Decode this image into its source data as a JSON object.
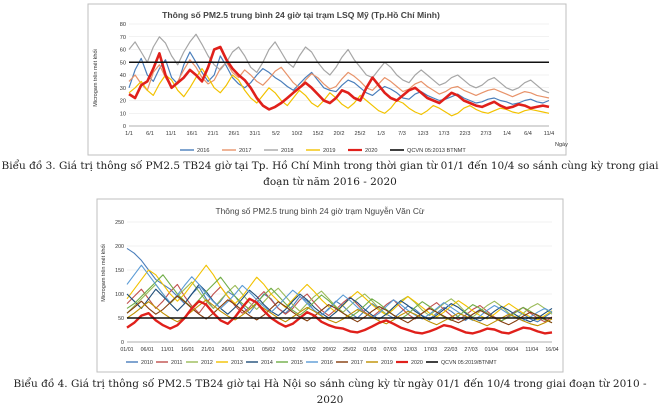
{
  "chart_data": [
    {
      "type": "line",
      "title": "Thông số PM2.5 trung bình 24 giờ tại trạm LSQ Mỹ (Tp.Hồ Chí Minh)",
      "ylabel": "Microgam trên mét khối",
      "xlabel": "Ngày",
      "ylim": [
        0,
        80
      ],
      "yticks": [
        0,
        10,
        20,
        30,
        40,
        50,
        60,
        70,
        80
      ],
      "xticks": [
        "1/1",
        "6/1",
        "11/1",
        "16/1",
        "21/1",
        "26/1",
        "31/1",
        "5/2",
        "10/2",
        "15/2",
        "20/2",
        "25/2",
        "1/3",
        "7/3",
        "12/3",
        "17/3",
        "22/3",
        "27/3",
        "1/4",
        "6/4",
        "11/4"
      ],
      "threshold": {
        "name": "QCVN 05:2013 BTNMT",
        "value": 50,
        "color": "#111111"
      },
      "caption": "Biểu đồ 3. Giá trị thông số PM2.5 TB24 giờ tại Tp. Hồ Chí Minh trong thời gian từ 01/1 đến 10/4 so sánh cùng kỳ trong giai đoạn từ năm 2016 - 2020",
      "series": [
        {
          "name": "2016",
          "color": "#4a7ebb",
          "width": 1.2,
          "values": [
            30,
            44,
            53,
            40,
            35,
            45,
            52,
            38,
            33,
            48,
            58,
            50,
            42,
            35,
            40,
            55,
            47,
            38,
            33,
            30,
            34,
            40,
            45,
            42,
            38,
            35,
            31,
            28,
            33,
            38,
            42,
            36,
            30,
            28,
            27,
            32,
            36,
            34,
            30,
            26,
            24,
            28,
            31,
            29,
            26,
            22,
            21,
            25,
            27,
            24,
            22,
            20,
            21,
            23,
            25,
            22,
            20,
            18,
            19,
            21,
            22,
            20,
            19,
            17,
            18,
            20,
            21,
            19,
            18,
            20
          ]
        },
        {
          "name": "2017",
          "color": "#e8936a",
          "width": 1.2,
          "values": [
            35,
            40,
            33,
            28,
            42,
            48,
            38,
            30,
            35,
            44,
            52,
            46,
            38,
            33,
            36,
            45,
            50,
            42,
            38,
            44,
            40,
            35,
            32,
            37,
            43,
            46,
            40,
            34,
            30,
            36,
            41,
            38,
            33,
            29,
            31,
            37,
            42,
            39,
            35,
            30,
            28,
            33,
            38,
            35,
            31,
            27,
            29,
            33,
            35,
            31,
            28,
            25,
            27,
            30,
            31,
            28,
            26,
            24,
            26,
            28,
            29,
            27,
            25,
            23,
            25,
            27,
            26,
            24,
            23,
            22
          ]
        },
        {
          "name": "2018",
          "color": "#a6a6a6",
          "width": 1.2,
          "values": [
            60,
            66,
            58,
            50,
            62,
            70,
            65,
            55,
            48,
            58,
            66,
            72,
            64,
            55,
            48,
            44,
            50,
            58,
            62,
            55,
            46,
            42,
            50,
            60,
            66,
            58,
            50,
            46,
            55,
            62,
            58,
            50,
            44,
            40,
            46,
            54,
            60,
            52,
            46,
            40,
            38,
            44,
            50,
            46,
            40,
            36,
            34,
            40,
            44,
            40,
            36,
            32,
            34,
            38,
            40,
            36,
            32,
            30,
            32,
            36,
            38,
            34,
            30,
            28,
            30,
            34,
            36,
            32,
            28,
            26
          ]
        },
        {
          "name": "2019",
          "color": "#f2c200",
          "width": 1.2,
          "values": [
            26,
            30,
            35,
            28,
            24,
            33,
            40,
            36,
            28,
            23,
            30,
            38,
            45,
            38,
            30,
            26,
            32,
            40,
            36,
            28,
            22,
            18,
            24,
            30,
            26,
            20,
            16,
            22,
            28,
            24,
            18,
            15,
            20,
            26,
            22,
            17,
            14,
            18,
            24,
            20,
            16,
            12,
            10,
            14,
            20,
            18,
            14,
            11,
            9,
            12,
            16,
            14,
            11,
            8,
            10,
            14,
            16,
            13,
            11,
            10,
            12,
            14,
            13,
            11,
            10,
            12,
            13,
            12,
            11,
            10
          ]
        },
        {
          "name": "2020",
          "color": "#e0201b",
          "width": 2.6,
          "values": [
            25,
            22,
            32,
            35,
            45,
            57,
            40,
            30,
            34,
            38,
            44,
            40,
            35,
            46,
            60,
            62,
            52,
            45,
            40,
            36,
            30,
            22,
            16,
            13,
            15,
            18,
            22,
            26,
            30,
            34,
            30,
            25,
            20,
            18,
            22,
            28,
            26,
            22,
            20,
            30,
            38,
            32,
            26,
            22,
            20,
            24,
            28,
            30,
            26,
            22,
            20,
            18,
            22,
            26,
            24,
            20,
            18,
            16,
            15,
            17,
            19,
            16,
            14,
            15,
            17,
            16,
            14,
            15,
            16,
            15
          ]
        }
      ]
    },
    {
      "type": "line",
      "title": "Thông số PM2.5 trung bình 24 giờ trạm Nguyễn Văn Cừ",
      "ylabel": "Microgam trên mét khối",
      "xlabel": "",
      "ylim": [
        0,
        250
      ],
      "yticks": [
        0,
        50,
        100,
        150,
        200,
        250
      ],
      "xticks": [
        "01/01",
        "06/01",
        "11/01",
        "16/01",
        "21/01",
        "26/01",
        "31/01",
        "05/02",
        "10/02",
        "15/02",
        "20/02",
        "25/02",
        "01/03",
        "07/03",
        "12/03",
        "17/03",
        "22/03",
        "27/03",
        "01/04",
        "06/04",
        "11/04",
        "16/04"
      ],
      "threshold": {
        "name": "QCVN 05:2019/BTNMT",
        "value": 50,
        "color": "#111111"
      },
      "caption": "Biểu đồ 4. Giá trị thông số PM2.5 TB24 giờ tại Hà Nội so sánh cùng kỳ từ ngày 01/1 đến 10/4 trong giai đoạn từ 2010 - 2020",
      "series": [
        {
          "name": "2010",
          "color": "#4a7ebb",
          "width": 1.1,
          "values": [
            195,
            185,
            170,
            150,
            130,
            120,
            110,
            95,
            80,
            100,
            115,
            90,
            70,
            85,
            105,
            95,
            75,
            60,
            80,
            100,
            90,
            70,
            60,
            75,
            95,
            85,
            65,
            55,
            70,
            85,
            75,
            60,
            50,
            65,
            80,
            70,
            58,
            50,
            62,
            75,
            68,
            55,
            48,
            60,
            72,
            64,
            52,
            45,
            58,
            68,
            60,
            50,
            44,
            55,
            65,
            58,
            48,
            42,
            52,
            62
          ]
        },
        {
          "name": "2011",
          "color": "#c0504d",
          "width": 1.1,
          "values": [
            80,
            95,
            110,
            90,
            70,
            85,
            105,
            120,
            95,
            75,
            60,
            80,
            100,
            115,
            95,
            75,
            60,
            72,
            90,
            105,
            88,
            70,
            58,
            70,
            88,
            100,
            82,
            66,
            55,
            68,
            82,
            94,
            78,
            62,
            52,
            64,
            78,
            88,
            72,
            58,
            48,
            60,
            72,
            82,
            68,
            55,
            46,
            56,
            68,
            76,
            64,
            52,
            44,
            54,
            64,
            72,
            60,
            50,
            42,
            52
          ]
        },
        {
          "name": "2012",
          "color": "#9bbb59",
          "width": 1.1,
          "values": [
            60,
            75,
            90,
            105,
            120,
            100,
            80,
            95,
            110,
            125,
            105,
            85,
            70,
            88,
            104,
            118,
            100,
            82,
            68,
            84,
            100,
            112,
            95,
            78,
            64,
            80,
            95,
            106,
            90,
            74,
            62,
            76,
            90,
            100,
            86,
            70,
            58,
            72,
            86,
            95,
            82,
            66,
            55,
            68,
            80,
            90,
            78,
            62,
            52,
            64,
            76,
            85,
            74,
            60,
            50,
            60,
            72,
            80,
            70,
            58
          ]
        },
        {
          "name": "2013",
          "color": "#f2c200",
          "width": 1.1,
          "values": [
            90,
            110,
            130,
            150,
            140,
            120,
            100,
            85,
            100,
            120,
            140,
            160,
            140,
            115,
            95,
            80,
            95,
            115,
            135,
            120,
            100,
            85,
            72,
            88,
            105,
            120,
            105,
            88,
            74,
            62,
            76,
            92,
            105,
            92,
            78,
            66,
            56,
            68,
            82,
            95,
            84,
            72,
            60,
            52,
            62,
            75,
            86,
            76,
            65,
            55,
            48,
            58,
            70,
            80,
            70,
            60,
            52,
            46,
            55,
            65
          ]
        },
        {
          "name": "2014",
          "color": "#1f4e79",
          "width": 1.1,
          "values": [
            100,
            85,
            70,
            90,
            110,
            95,
            80,
            65,
            80,
            100,
            120,
            105,
            85,
            70,
            58,
            72,
            90,
            108,
            95,
            78,
            64,
            55,
            68,
            85,
            100,
            88,
            72,
            60,
            50,
            62,
            78,
            92,
            82,
            68,
            56,
            48,
            58,
            72,
            86,
            76,
            64,
            54,
            46,
            56,
            68,
            80,
            72,
            60,
            50,
            44,
            52,
            64,
            74,
            66,
            56,
            48,
            42,
            50,
            60,
            70
          ]
        },
        {
          "name": "2015",
          "color": "#70ad47",
          "width": 1.1,
          "values": [
            70,
            80,
            95,
            110,
            125,
            140,
            120,
            100,
            85,
            72,
            88,
            105,
            120,
            135,
            115,
            95,
            80,
            68,
            82,
            98,
            112,
            96,
            80,
            66,
            56,
            68,
            84,
            98,
            86,
            72,
            60,
            52,
            62,
            76,
            90,
            80,
            68,
            56,
            48,
            58,
            72,
            84,
            74,
            62,
            52,
            45,
            54,
            66,
            78,
            70,
            60,
            50,
            44,
            52,
            62,
            72,
            64,
            54,
            46,
            40
          ]
        },
        {
          "name": "2016",
          "color": "#5b9bd5",
          "width": 1.1,
          "values": [
            120,
            140,
            160,
            140,
            120,
            100,
            82,
            98,
            118,
            136,
            120,
            100,
            84,
            70,
            84,
            100,
            118,
            104,
            88,
            74,
            62,
            76,
            92,
            108,
            96,
            80,
            66,
            56,
            68,
            84,
            98,
            86,
            72,
            60,
            50,
            60,
            74,
            88,
            78,
            66,
            56,
            48,
            58,
            70,
            82,
            72,
            62,
            52,
            45,
            54,
            66,
            76,
            68,
            58,
            50,
            44,
            52,
            62,
            70,
            62
          ]
        },
        {
          "name": "2017",
          "color": "#843c0c",
          "width": 1.1,
          "values": [
            60,
            72,
            85,
            70,
            58,
            68,
            82,
            96,
            84,
            70,
            58,
            48,
            60,
            74,
            88,
            78,
            66,
            55,
            46,
            56,
            70,
            84,
            74,
            62,
            52,
            44,
            54,
            66,
            78,
            70,
            60,
            50,
            42,
            52,
            64,
            74,
            66,
            56,
            48,
            40,
            50,
            60,
            70,
            62,
            54,
            46,
            40,
            48,
            58,
            66,
            58,
            50,
            42,
            36,
            44,
            54,
            62,
            56,
            48,
            40
          ]
        },
        {
          "name": "2019",
          "color": "#bf9000",
          "width": 1.1,
          "values": [
            50,
            60,
            72,
            84,
            72,
            60,
            50,
            42,
            52,
            64,
            76,
            88,
            76,
            64,
            54,
            46,
            56,
            68,
            80,
            70,
            60,
            50,
            42,
            52,
            62,
            72,
            64,
            54,
            46,
            40,
            48,
            58,
            68,
            60,
            52,
            44,
            38,
            46,
            56,
            64,
            58,
            50,
            42,
            36,
            44,
            52,
            60,
            54,
            46,
            40,
            34,
            42,
            50,
            58,
            52,
            44,
            38,
            34,
            40,
            48
          ]
        },
        {
          "name": "2020",
          "color": "#e0201b",
          "width": 2.4,
          "values": [
            30,
            40,
            55,
            60,
            45,
            35,
            28,
            35,
            50,
            70,
            85,
            78,
            60,
            45,
            38,
            52,
            72,
            90,
            82,
            65,
            50,
            40,
            32,
            38,
            50,
            62,
            55,
            42,
            35,
            30,
            28,
            22,
            20,
            25,
            32,
            40,
            45,
            38,
            30,
            25,
            20,
            18,
            22,
            28,
            35,
            32,
            26,
            20,
            18,
            22,
            28,
            26,
            20,
            18,
            24,
            30,
            28,
            22,
            18,
            20
          ]
        }
      ]
    }
  ]
}
